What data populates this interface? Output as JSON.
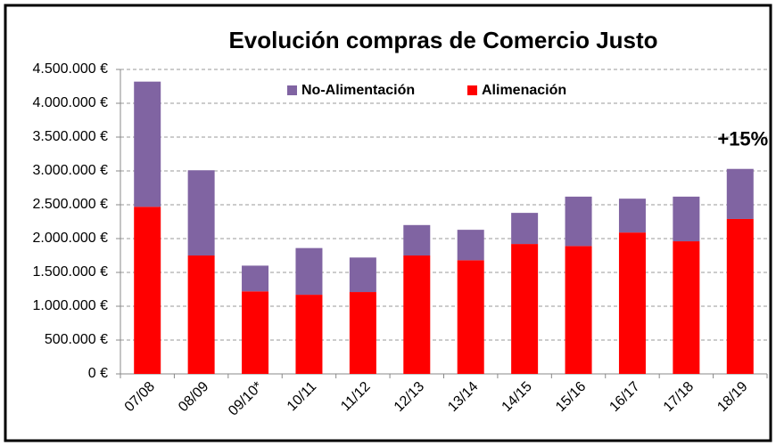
{
  "chart_data": {
    "type": "stacked_bar",
    "title": "Evolución compras de Comercio Justo",
    "categories": [
      "07/08",
      "08/09",
      "09/10*",
      "10/11",
      "11/12",
      "12/13",
      "13/14",
      "14/15",
      "15/16",
      "16/17",
      "17/18",
      "18/19"
    ],
    "series": [
      {
        "name": "Alimenación",
        "color": "#ff0000",
        "values": [
          2470000,
          1750000,
          1220000,
          1170000,
          1210000,
          1750000,
          1680000,
          1920000,
          1890000,
          2090000,
          1960000,
          2290000
        ]
      },
      {
        "name": "No-Alimentación",
        "color": "#8064a2",
        "values": [
          1850000,
          1260000,
          380000,
          690000,
          510000,
          450000,
          450000,
          460000,
          730000,
          500000,
          660000,
          740000
        ]
      }
    ],
    "ylim": [
      0,
      4500000
    ],
    "yticks": [
      {
        "value": 0,
        "label": "0 €"
      },
      {
        "value": 500000,
        "label": "500.000 €"
      },
      {
        "value": 1000000,
        "label": "1.000.000 €"
      },
      {
        "value": 1500000,
        "label": "1.500.000 €"
      },
      {
        "value": 2000000,
        "label": "2.000.000 €"
      },
      {
        "value": 2500000,
        "label": "2.500.000 €"
      },
      {
        "value": 3000000,
        "label": "3.000.000 €"
      },
      {
        "value": 3500000,
        "label": "3.500.000 €"
      },
      {
        "value": 4000000,
        "label": "4.000.000 €"
      },
      {
        "value": 4500000,
        "label": "4.500.000 €"
      }
    ],
    "grid": true,
    "annotation": "+15%"
  }
}
